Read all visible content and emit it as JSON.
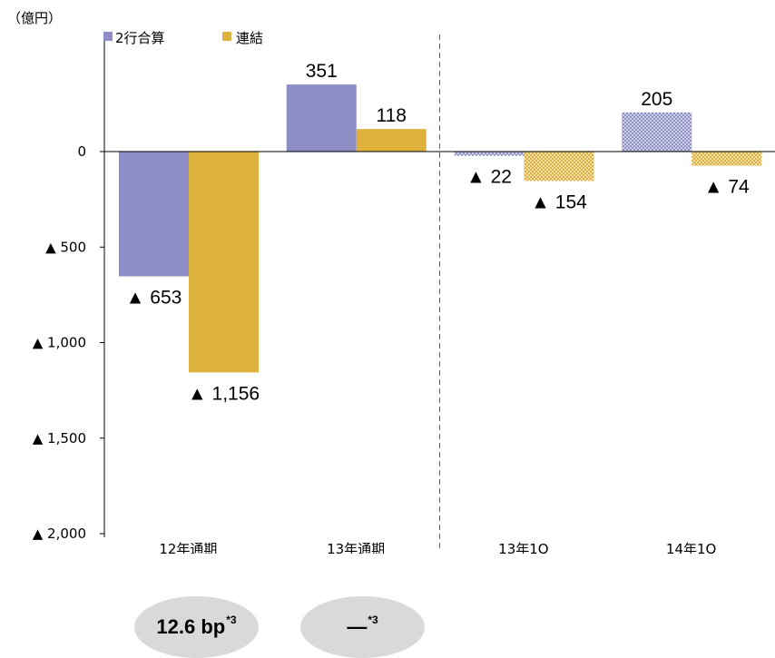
{
  "unit_label": "（億円）",
  "legend": [
    {
      "label": "2行合算",
      "color": "#8e8ec6"
    },
    {
      "label": "連結",
      "color": "#ddb23c"
    }
  ],
  "chart_data": {
    "type": "bar",
    "categories": [
      "12年通期",
      "13年通期",
      "13年1Q",
      "14年1Q"
    ],
    "series": [
      {
        "name": "2行合算",
        "values": [
          -653,
          351,
          -22,
          205
        ],
        "labels": [
          "▲ 653",
          "351",
          "▲ 22",
          "205"
        ]
      },
      {
        "name": "連結",
        "values": [
          -1156,
          118,
          -154,
          -74
        ],
        "labels": [
          "▲ 1,156",
          "118",
          "▲ 154",
          "▲ 74"
        ]
      }
    ],
    "ylim": [
      -2000,
      351
    ],
    "yticks": [
      {
        "value": 0,
        "label": "0"
      },
      {
        "value": -500,
        "label": "▲ 500"
      },
      {
        "value": -1000,
        "label": "▲ 1,000"
      },
      {
        "value": -1500,
        "label": "▲ 1,500"
      },
      {
        "value": -2000,
        "label": "▲ 2,000"
      }
    ],
    "patterned_categories": [
      "13年1Q",
      "14年1Q"
    ],
    "divider_after_category": "13年通期"
  },
  "badges": [
    {
      "text": "12.6 bp",
      "note": "*3"
    },
    {
      "text": "―",
      "note": "*3"
    }
  ]
}
